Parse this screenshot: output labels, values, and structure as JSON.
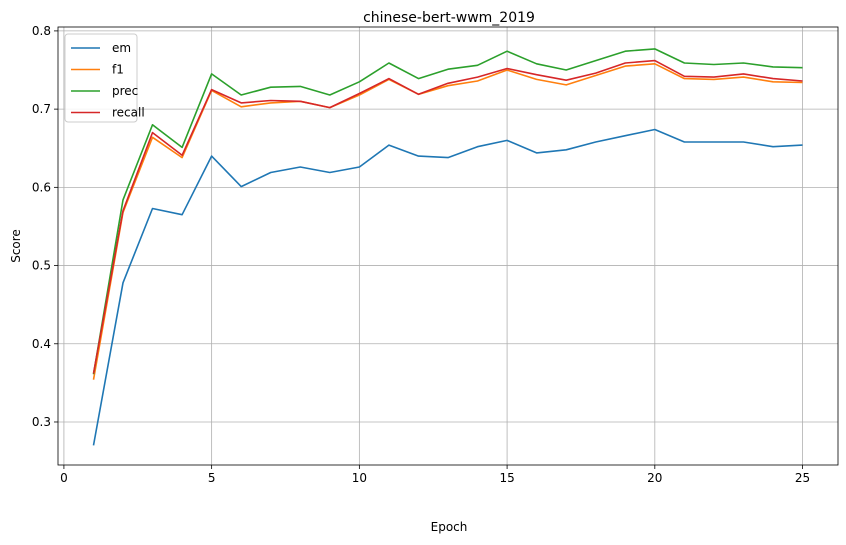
{
  "chart_data": {
    "type": "line",
    "title": "chinese-bert-wwm_2019",
    "xlabel": "Epoch",
    "ylabel": "Score",
    "xlim": [
      -0.2,
      26.2
    ],
    "ylim": [
      0.245,
      0.805
    ],
    "xticks": [
      0,
      5,
      10,
      15,
      20,
      25
    ],
    "yticks": [
      0.3,
      0.4,
      0.5,
      0.6,
      0.7,
      0.8
    ],
    "grid": true,
    "legend_position": "top-left",
    "x": [
      1,
      2,
      3,
      4,
      5,
      6,
      7,
      8,
      9,
      10,
      11,
      12,
      13,
      14,
      15,
      16,
      17,
      18,
      19,
      20,
      21,
      22,
      23,
      24,
      25
    ],
    "series": [
      {
        "name": "em",
        "color": "#1f77b4",
        "values": [
          0.27,
          0.478,
          0.573,
          0.565,
          0.64,
          0.601,
          0.619,
          0.626,
          0.619,
          0.626,
          0.654,
          0.64,
          0.638,
          0.652,
          0.66,
          0.644,
          0.648,
          0.658,
          0.666,
          0.674,
          0.658,
          0.658,
          0.658,
          0.652,
          0.654
        ]
      },
      {
        "name": "f1",
        "color": "#ff7f0e",
        "values": [
          0.354,
          0.568,
          0.664,
          0.638,
          0.724,
          0.703,
          0.708,
          0.71,
          0.702,
          0.718,
          0.738,
          0.719,
          0.73,
          0.736,
          0.75,
          0.738,
          0.731,
          0.743,
          0.755,
          0.758,
          0.739,
          0.738,
          0.741,
          0.735,
          0.734
        ]
      },
      {
        "name": "prec",
        "color": "#2ca02c",
        "values": [
          0.361,
          0.584,
          0.68,
          0.651,
          0.745,
          0.718,
          0.728,
          0.729,
          0.718,
          0.735,
          0.759,
          0.739,
          0.751,
          0.756,
          0.774,
          0.758,
          0.75,
          0.762,
          0.774,
          0.777,
          0.759,
          0.757,
          0.759,
          0.754,
          0.753
        ]
      },
      {
        "name": "recall",
        "color": "#d62728",
        "values": [
          0.362,
          0.57,
          0.67,
          0.641,
          0.725,
          0.708,
          0.711,
          0.71,
          0.702,
          0.72,
          0.739,
          0.719,
          0.733,
          0.741,
          0.752,
          0.744,
          0.737,
          0.746,
          0.759,
          0.762,
          0.742,
          0.741,
          0.745,
          0.739,
          0.736
        ]
      }
    ]
  }
}
